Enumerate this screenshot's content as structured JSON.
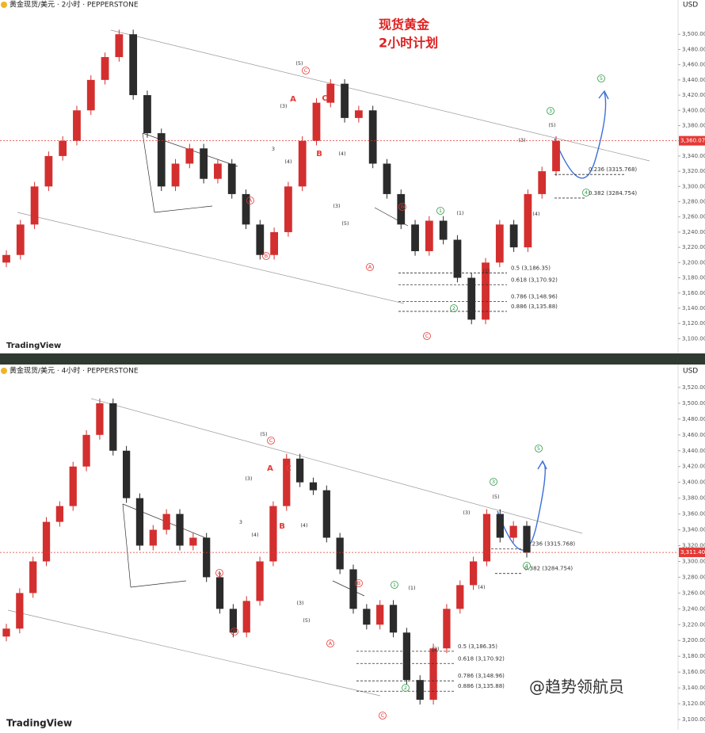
{
  "chart_data": [
    {
      "type": "candlestick",
      "header": "黄金现货/美元 · 2小时 · PEPPERSTONE",
      "currency": "USD",
      "title": "现货黄金",
      "subtitle": "2小时计划",
      "brand": "TradingView",
      "up_color": "#d32f2f",
      "down_color": "#2b2b2b",
      "open": [
        3200,
        3210,
        3250,
        3300,
        3340,
        3360,
        3400,
        3440,
        3470,
        3500,
        3420,
        3370,
        3300,
        3330,
        3350,
        3310,
        3330,
        3290,
        3250,
        3210,
        3240,
        3300,
        3360,
        3410,
        3435,
        3390,
        3400,
        3330,
        3290,
        3250,
        3215,
        3255,
        3230,
        3180,
        3125,
        3200,
        3250,
        3220,
        3290,
        3320
      ],
      "high": [
        3216,
        3256,
        3306,
        3346,
        3366,
        3406,
        3446,
        3476,
        3506,
        3506,
        3426,
        3376,
        3336,
        3356,
        3356,
        3336,
        3336,
        3296,
        3256,
        3246,
        3306,
        3366,
        3416,
        3441,
        3441,
        3406,
        3406,
        3336,
        3296,
        3256,
        3261,
        3261,
        3236,
        3186,
        3206,
        3256,
        3256,
        3296,
        3326,
        3366
      ],
      "low": [
        3194,
        3204,
        3244,
        3294,
        3334,
        3354,
        3394,
        3434,
        3464,
        3414,
        3364,
        3294,
        3294,
        3324,
        3304,
        3304,
        3284,
        3244,
        3204,
        3204,
        3234,
        3294,
        3354,
        3404,
        3384,
        3384,
        3324,
        3284,
        3244,
        3209,
        3209,
        3224,
        3174,
        3119,
        3119,
        3194,
        3214,
        3214,
        3284,
        3314
      ],
      "close": [
        3210,
        3250,
        3300,
        3340,
        3360,
        3400,
        3440,
        3470,
        3500,
        3420,
        3370,
        3300,
        3330,
        3350,
        3310,
        3330,
        3290,
        3250,
        3210,
        3240,
        3300,
        3360,
        3410,
        3435,
        3390,
        3400,
        3330,
        3290,
        3250,
        3215,
        3255,
        3230,
        3180,
        3125,
        3200,
        3250,
        3220,
        3290,
        3320,
        3360
      ],
      "ylim": [
        3090,
        3545
      ],
      "yticks": [
        {
          "value": 3100,
          "label": "3,100.00"
        },
        {
          "value": 3120,
          "label": "3,120.00"
        },
        {
          "value": 3140,
          "label": "3,140.00"
        },
        {
          "value": 3160,
          "label": "3,160.00"
        },
        {
          "value": 3180,
          "label": "3,180.00"
        },
        {
          "value": 3200,
          "label": "3,200.00"
        },
        {
          "value": 3220,
          "label": "3,220.00"
        },
        {
          "value": 3240,
          "label": "3,240.00"
        },
        {
          "value": 3260,
          "label": "3,260.00"
        },
        {
          "value": 3280,
          "label": "3,280.00"
        },
        {
          "value": 3300,
          "label": "3,300.00"
        },
        {
          "value": 3320,
          "label": "3,320.00"
        },
        {
          "value": 3340,
          "label": "3,340.00"
        },
        {
          "value": 3360,
          "label": "3,360.00"
        },
        {
          "value": 3380,
          "label": "3,380.00"
        },
        {
          "value": 3400,
          "label": "3,400.00"
        },
        {
          "value": 3420,
          "label": "3,420.00"
        },
        {
          "value": 3440,
          "label": "3,440.00"
        },
        {
          "value": 3460,
          "label": "3,460.00"
        },
        {
          "value": 3480,
          "label": "3,480.00"
        },
        {
          "value": 3500,
          "label": "3,500.00"
        }
      ],
      "last_price": {
        "value": 3360.07,
        "label": "3,360.07"
      },
      "fib_levels": [
        {
          "value": 3315.768,
          "label": "0.236  (3315.768)"
        },
        {
          "value": 3284.754,
          "label": "0.382  (3284.754)"
        },
        {
          "value": 3186.35,
          "label": "0.5 (3,186.35)"
        },
        {
          "value": 3170.92,
          "label": "0.618 (3,170.92)"
        },
        {
          "value": 3148.96,
          "label": "0.786 (3,148.96)"
        },
        {
          "value": 3135.88,
          "label": "0.886 (3,135.88)"
        }
      ],
      "annotations": [
        "(5)",
        "C",
        "A",
        "C",
        "B",
        "(3)",
        "3",
        "(4)",
        "A",
        "B",
        "B",
        "A",
        "C",
        "1",
        "2",
        "3",
        "4",
        "5",
        "(5)",
        "(3)",
        "(4)",
        "(1)",
        "(2)",
        "(5)",
        "(3)",
        "(4)"
      ]
    },
    {
      "type": "candlestick",
      "header": "黄金现货/美元 · 4小时 · PEPPERSTONE",
      "currency": "USD",
      "brand": "TradingView",
      "watermark": "@趋势领航员",
      "up_color": "#d32f2f",
      "down_color": "#2b2b2b",
      "open": [
        3205,
        3215,
        3260,
        3300,
        3350,
        3370,
        3420,
        3460,
        3500,
        3440,
        3380,
        3320,
        3340,
        3360,
        3320,
        3330,
        3280,
        3240,
        3210,
        3250,
        3300,
        3370,
        3430,
        3400,
        3390,
        3330,
        3290,
        3240,
        3220,
        3245,
        3210,
        3150,
        3125,
        3190,
        3240,
        3270,
        3300,
        3360,
        3330,
        3345
      ],
      "high": [
        3221,
        3266,
        3306,
        3356,
        3376,
        3426,
        3466,
        3506,
        3506,
        3446,
        3386,
        3346,
        3366,
        3366,
        3336,
        3336,
        3286,
        3246,
        3256,
        3306,
        3376,
        3436,
        3436,
        3406,
        3396,
        3336,
        3296,
        3246,
        3251,
        3251,
        3216,
        3156,
        3196,
        3246,
        3276,
        3306,
        3366,
        3366,
        3351,
        3351
      ],
      "low": [
        3199,
        3209,
        3254,
        3294,
        3344,
        3364,
        3414,
        3454,
        3434,
        3374,
        3314,
        3314,
        3334,
        3314,
        3314,
        3274,
        3234,
        3204,
        3204,
        3244,
        3294,
        3364,
        3394,
        3384,
        3324,
        3284,
        3234,
        3214,
        3214,
        3204,
        3144,
        3119,
        3119,
        3184,
        3234,
        3264,
        3294,
        3324,
        3324,
        3305
      ],
      "close": [
        3215,
        3260,
        3300,
        3350,
        3370,
        3420,
        3460,
        3500,
        3440,
        3380,
        3320,
        3340,
        3360,
        3320,
        3330,
        3280,
        3240,
        3210,
        3250,
        3300,
        3370,
        3430,
        3400,
        3390,
        3330,
        3290,
        3240,
        3220,
        3245,
        3210,
        3150,
        3125,
        3190,
        3240,
        3270,
        3300,
        3360,
        3330,
        3345,
        3311
      ],
      "ylim": [
        3087,
        3546
      ],
      "yticks": [
        {
          "value": 3100,
          "label": "3,100.00"
        },
        {
          "value": 3120,
          "label": "3,120.00"
        },
        {
          "value": 3140,
          "label": "3,140.00"
        },
        {
          "value": 3160,
          "label": "3,160.00"
        },
        {
          "value": 3180,
          "label": "3,180.00"
        },
        {
          "value": 3200,
          "label": "3,200.00"
        },
        {
          "value": 3220,
          "label": "3,220.00"
        },
        {
          "value": 3240,
          "label": "3,240.00"
        },
        {
          "value": 3260,
          "label": "3,260.00"
        },
        {
          "value": 3280,
          "label": "3,280.00"
        },
        {
          "value": 3300,
          "label": "3,300.00"
        },
        {
          "value": 3320,
          "label": "3,320.00"
        },
        {
          "value": 3340,
          "label": "3,340.00"
        },
        {
          "value": 3360,
          "label": "3,360.00"
        },
        {
          "value": 3380,
          "label": "3,380.00"
        },
        {
          "value": 3400,
          "label": "3,400.00"
        },
        {
          "value": 3420,
          "label": "3,420.00"
        },
        {
          "value": 3440,
          "label": "3,440.00"
        },
        {
          "value": 3460,
          "label": "3,460.00"
        },
        {
          "value": 3480,
          "label": "3,480.00"
        },
        {
          "value": 3500,
          "label": "3,500.00"
        },
        {
          "value": 3520,
          "label": "3,520.00"
        }
      ],
      "last_price": {
        "value": 3311.4,
        "label": "3,311.40"
      },
      "fib_levels": [
        {
          "value": 3315.768,
          "label": "0.236  (3315.768)"
        },
        {
          "value": 3284.754,
          "label": "0.382  (3284.754)"
        },
        {
          "value": 3186.35,
          "label": "0.5 (3,186.35)"
        },
        {
          "value": 3170.92,
          "label": "0.618 (3,170.92)"
        },
        {
          "value": 3148.96,
          "label": "0.786 (3,148.96)"
        },
        {
          "value": 3135.88,
          "label": "0.886 (3,135.88)"
        }
      ],
      "annotations": [
        "(5)",
        "C",
        "A",
        "C",
        "B",
        "(3)",
        "3",
        "(4)",
        "A",
        "B",
        "B",
        "A",
        "C",
        "1",
        "2",
        "3",
        "4",
        "5",
        "(5)",
        "(3)",
        "(4)",
        "(1)",
        "(2)",
        "(5)",
        "(3)",
        "(4)"
      ]
    }
  ]
}
